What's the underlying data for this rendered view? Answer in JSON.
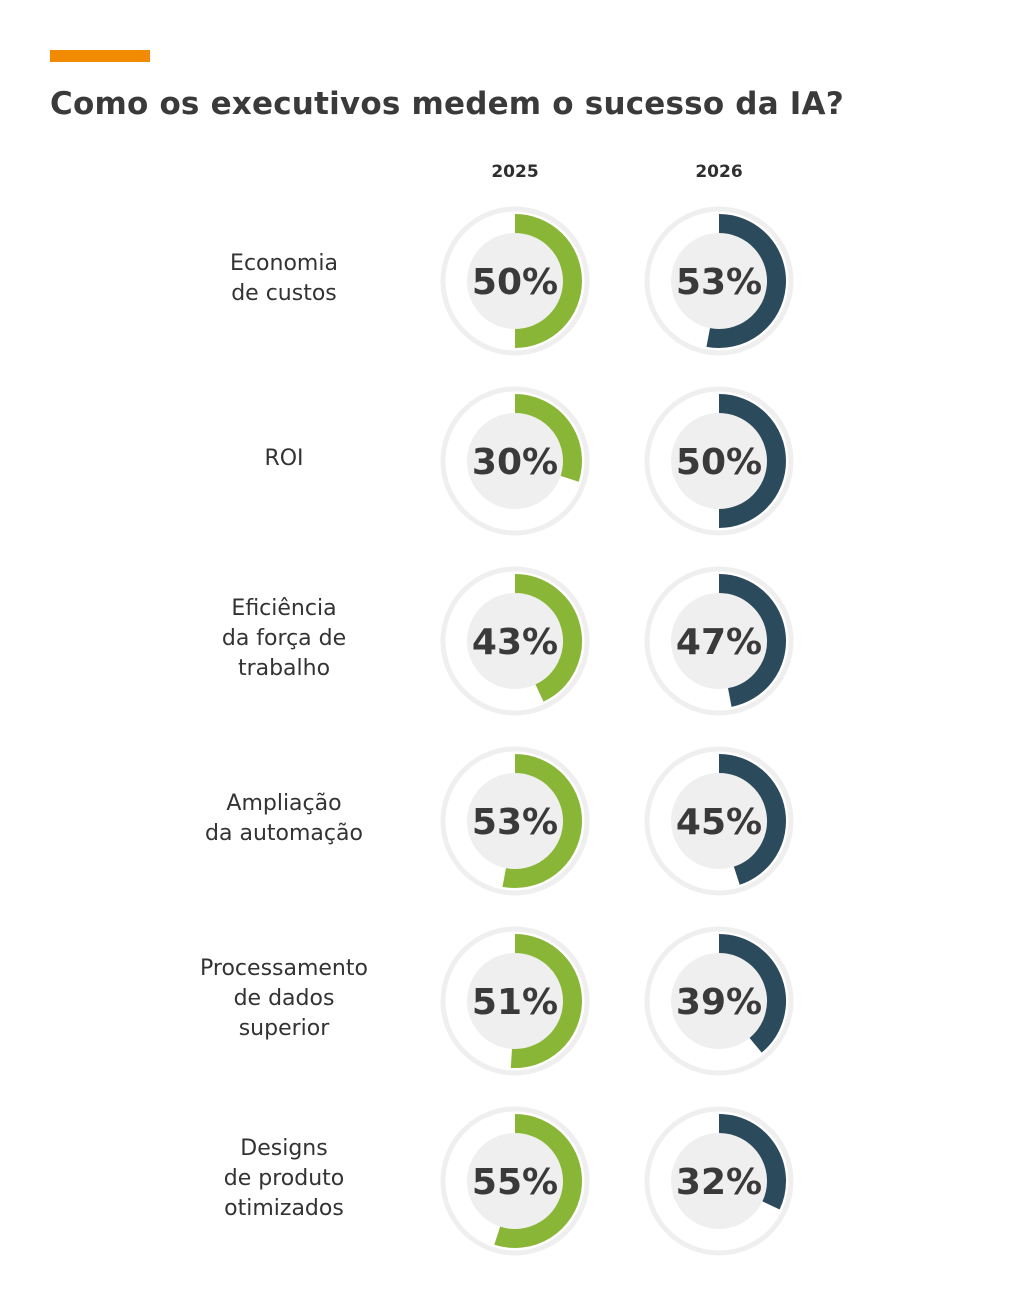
{
  "chart_data": {
    "type": "donut",
    "title": "Como os executivos medem o sucesso da IA?",
    "series": [
      {
        "name": "2025",
        "color": "#8ab637",
        "values": [
          50,
          30,
          43,
          53,
          51,
          55
        ]
      },
      {
        "name": "2026",
        "color": "#2b4a5c",
        "values": [
          53,
          50,
          47,
          45,
          39,
          32
        ]
      }
    ],
    "categories": [
      [
        "Economia",
        "de custos"
      ],
      [
        "ROI"
      ],
      [
        "Eficiência",
        "da força de",
        "trabalho"
      ],
      [
        "Ampliação",
        "da automação"
      ],
      [
        "Processamento",
        "de dados",
        "superior"
      ],
      [
        "Designs",
        "de produto",
        "otimizados"
      ]
    ],
    "value_labels": [
      [
        "50%",
        "53%"
      ],
      [
        "30%",
        "50%"
      ],
      [
        "43%",
        "47%"
      ],
      [
        "53%",
        "45%"
      ],
      [
        "51%",
        "39%"
      ],
      [
        "55%",
        "32%"
      ]
    ],
    "unit": "%",
    "max": 100
  },
  "colors": {
    "accent": "#f28a00",
    "track": "#efefef",
    "inner": "#efefef",
    "text": "#3a3a3a"
  }
}
